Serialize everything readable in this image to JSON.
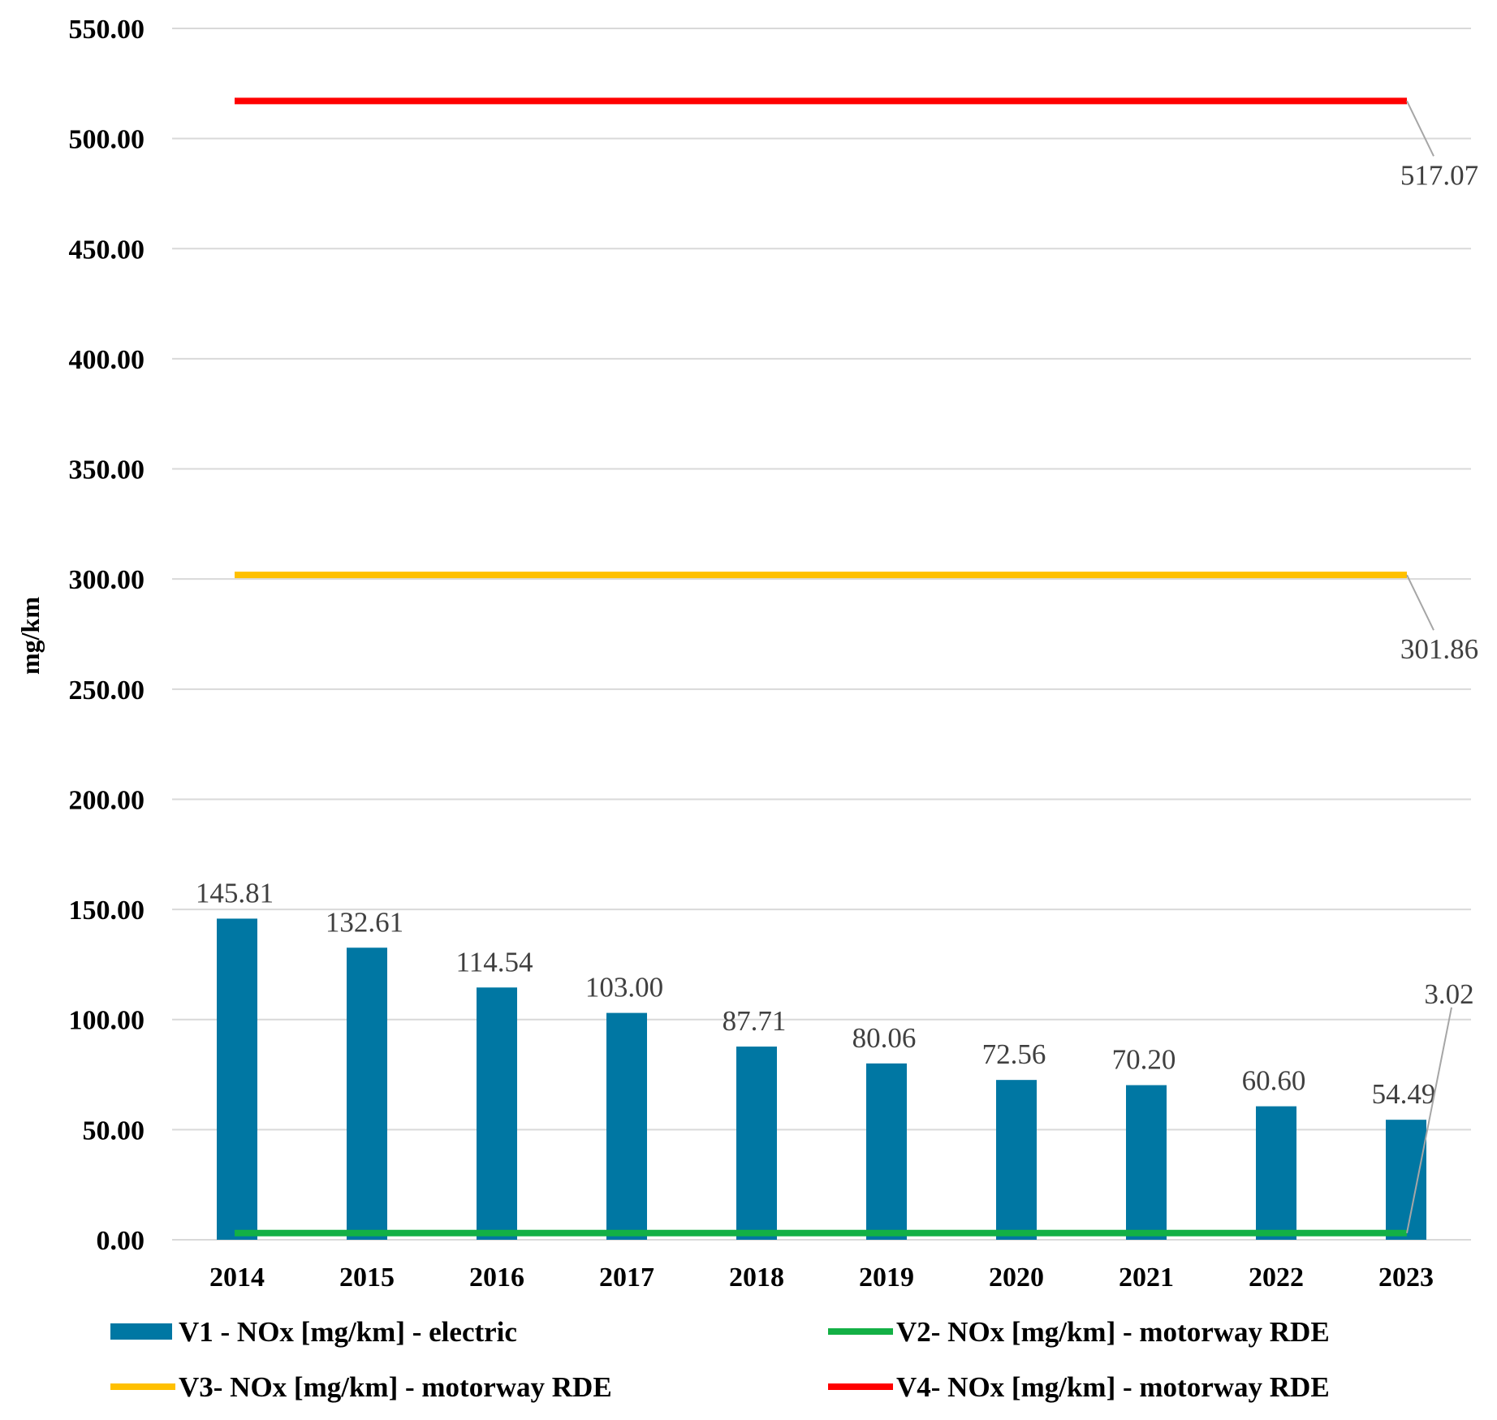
{
  "chart_data": {
    "type": "bar",
    "title": "",
    "xlabel": "",
    "ylabel": "mg/km",
    "ylim": [
      0,
      550
    ],
    "ytick_step": 50,
    "ytick_decimals": 2,
    "grid": true,
    "legend_position": "bottom",
    "categories": [
      "2014",
      "2015",
      "2016",
      "2017",
      "2018",
      "2019",
      "2020",
      "2021",
      "2022",
      "2023"
    ],
    "series": [
      {
        "name": "V1 - NOx [mg/km] - electric",
        "kind": "bar",
        "color": "#0077A3",
        "values": [
          145.81,
          132.61,
          114.54,
          103.0,
          87.71,
          80.06,
          72.56,
          70.2,
          60.6,
          54.49
        ],
        "labels": [
          "145.81",
          "132.61",
          "114.54",
          "103.00",
          "87.71",
          "80.06",
          "72.56",
          "70.20",
          "60.60",
          "54.49"
        ]
      },
      {
        "name": "V2- NOx [mg/km] - motorway RDE",
        "kind": "line",
        "color": "#13B045",
        "values": [
          3.02,
          3.02,
          3.02,
          3.02,
          3.02,
          3.02,
          3.02,
          3.02,
          3.02,
          3.02
        ],
        "end_label": "3.02"
      },
      {
        "name": "V3- NOx [mg/km] - motorway RDE",
        "kind": "line",
        "color": "#FFC000",
        "values": [
          301.86,
          301.86,
          301.86,
          301.86,
          301.86,
          301.86,
          301.86,
          301.86,
          301.86,
          301.86
        ],
        "end_label": "301.86"
      },
      {
        "name": "V4- NOx [mg/km] - motorway RDE",
        "kind": "line",
        "color": "#FF0000",
        "values": [
          517.07,
          517.07,
          517.07,
          517.07,
          517.07,
          517.07,
          517.07,
          517.07,
          517.07,
          517.07
        ],
        "end_label": "517.07"
      }
    ]
  }
}
